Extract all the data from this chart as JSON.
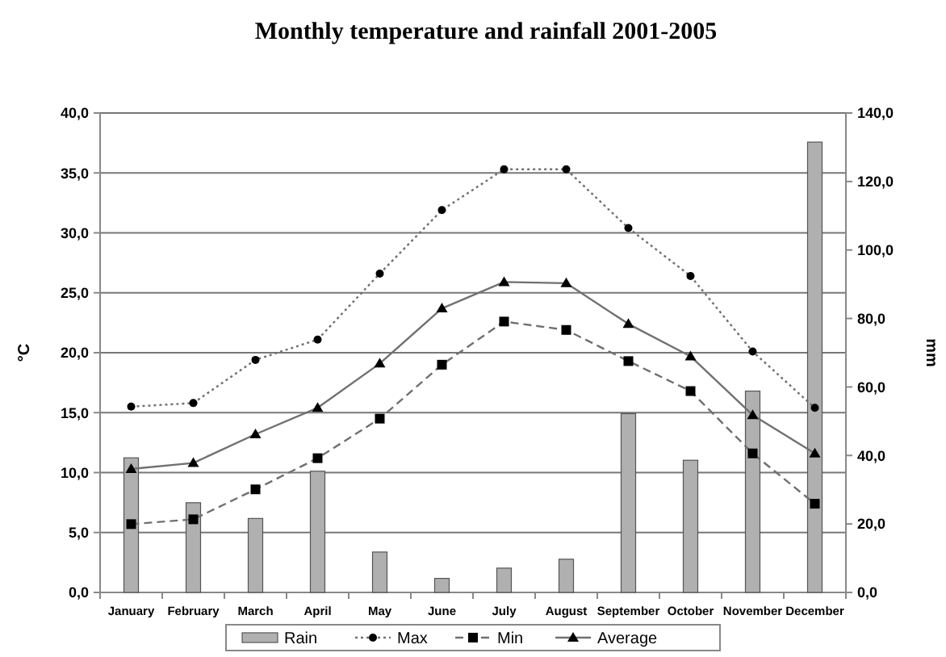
{
  "chart_data": {
    "type": "line",
    "title": "Monthly temperature and rainfall 2001-2005",
    "ylabel": "°C",
    "y2label": "mm",
    "categories": [
      "January",
      "February",
      "March",
      "April",
      "May",
      "June",
      "July",
      "August",
      "September",
      "October",
      "November",
      "December"
    ],
    "series": [
      {
        "name": "Rain",
        "type": "bar",
        "axis": "y2",
        "color": "#b0b0b0",
        "values": [
          39.3,
          26.2,
          21.6,
          35.4,
          11.8,
          4.1,
          7.1,
          9.7,
          52.2,
          38.6,
          58.8,
          131.5
        ]
      },
      {
        "name": "Max",
        "color": "#707070",
        "line_style": "dotted",
        "marker": "circle",
        "values": [
          15.5,
          15.8,
          19.4,
          21.1,
          26.6,
          31.9,
          35.3,
          35.3,
          30.4,
          26.4,
          20.1,
          15.4
        ]
      },
      {
        "name": "Min",
        "color": "#707070",
        "line_style": "dashed",
        "marker": "square",
        "values": [
          5.7,
          6.1,
          8.6,
          11.2,
          14.5,
          19.0,
          22.6,
          21.9,
          19.3,
          16.8,
          11.6,
          7.4
        ]
      },
      {
        "name": "Average",
        "color": "#707070",
        "line_style": "solid",
        "marker": "triangle",
        "values": [
          10.3,
          10.8,
          13.2,
          15.4,
          19.1,
          23.7,
          25.9,
          25.8,
          22.4,
          19.7,
          14.8,
          11.6
        ]
      }
    ],
    "ylim": [
      0,
      40
    ],
    "yticks": [
      {
        "value": 0,
        "label": "0,0"
      },
      {
        "value": 5,
        "label": "5,0"
      },
      {
        "value": 10,
        "label": "10,0"
      },
      {
        "value": 15,
        "label": "15,0"
      },
      {
        "value": 20,
        "label": "20,0"
      },
      {
        "value": 25,
        "label": "25,0"
      },
      {
        "value": 30,
        "label": "30,0"
      },
      {
        "value": 35,
        "label": "35,0"
      },
      {
        "value": 40,
        "label": "40,0"
      }
    ],
    "y2lim": [
      0,
      140
    ],
    "y2ticks": [
      {
        "value": 0,
        "label": "0,0"
      },
      {
        "value": 20,
        "label": "20,0"
      },
      {
        "value": 40,
        "label": "40,0"
      },
      {
        "value": 60,
        "label": "60,0"
      },
      {
        "value": 80,
        "label": "80,0"
      },
      {
        "value": 100,
        "label": "100,0"
      },
      {
        "value": 120,
        "label": "120,0"
      },
      {
        "value": 140,
        "label": "140,0"
      }
    ],
    "grid": "y",
    "legend": "bottom"
  }
}
